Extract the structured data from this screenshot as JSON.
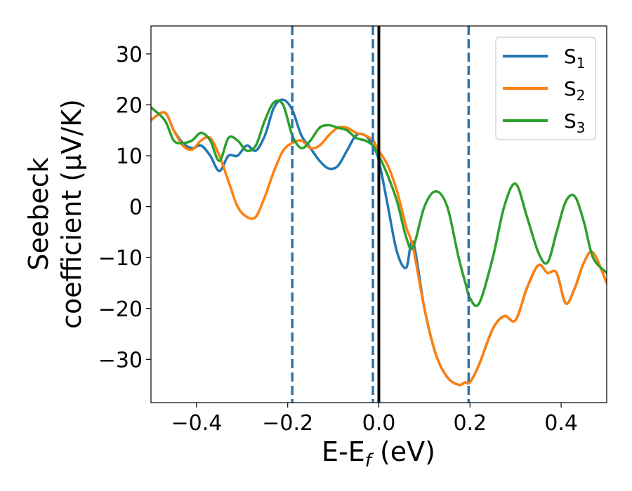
{
  "chart_data": {
    "type": "line",
    "title": "",
    "xlabel": {
      "main": "E-E",
      "sub": "f",
      "unit": " (eV)"
    },
    "ylabel": {
      "line1": "Seebeck",
      "line2": "coefficient  (μV/K)"
    },
    "xlim": [
      -0.5,
      0.5
    ],
    "ylim": [
      -38.5,
      35.5
    ],
    "xticks": [
      -0.4,
      -0.2,
      0.0,
      0.2,
      0.4
    ],
    "xtick_labels": [
      "−0.4",
      "−0.2",
      "0.0",
      "0.2",
      "0.4"
    ],
    "yticks": [
      30,
      20,
      10,
      0,
      -10,
      -20,
      -30
    ],
    "ytick_labels": [
      "30",
      "20",
      "10",
      "0",
      "−10",
      "−20",
      "−30"
    ],
    "grid": false,
    "legend_position": "top-right",
    "vertical_lines": [
      {
        "x": -0.19,
        "style": "dashed",
        "color": "#2f74a8"
      },
      {
        "x": -0.013,
        "style": "dashed",
        "color": "#2f74a8"
      },
      {
        "x": 0.0,
        "style": "solid",
        "color": "#000000"
      },
      {
        "x": 0.197,
        "style": "dashed",
        "color": "#2f74a8"
      }
    ],
    "series": [
      {
        "name": "S",
        "sub": "1",
        "color": "#1f77b4",
        "x": [
          -0.5,
          -0.47,
          -0.45,
          -0.43,
          -0.41,
          -0.39,
          -0.37,
          -0.35,
          -0.33,
          -0.31,
          -0.29,
          -0.27,
          -0.25,
          -0.23,
          -0.21,
          -0.19,
          -0.17,
          -0.15,
          -0.13,
          -0.11,
          -0.09,
          -0.07,
          -0.05,
          -0.03,
          -0.013,
          0.0,
          0.02,
          0.04,
          0.06,
          0.075,
          0.1,
          0.125,
          0.15,
          0.175,
          0.19,
          0.2,
          0.22,
          0.25,
          0.275,
          0.3,
          0.325,
          0.35,
          0.37,
          0.39,
          0.41,
          0.43,
          0.45,
          0.47,
          0.5
        ],
        "values": [
          17,
          18.5,
          15,
          12.5,
          11.5,
          12,
          10,
          7,
          10,
          10,
          12,
          11,
          14,
          19.5,
          21,
          19,
          14,
          11.5,
          9,
          7.5,
          8,
          11,
          14,
          14,
          12,
          9,
          0,
          -9,
          -12,
          -7,
          -20,
          -29,
          -33.5,
          -35,
          -34.5,
          -34.5,
          -31,
          -24,
          -21.5,
          -22.3,
          -16,
          -11.5,
          -13,
          -13,
          -19,
          -16,
          -11,
          -9,
          -15
        ]
      },
      {
        "name": "S",
        "sub": "2",
        "color": "#ff7f0e",
        "x": [
          -0.5,
          -0.47,
          -0.45,
          -0.43,
          -0.41,
          -0.39,
          -0.37,
          -0.35,
          -0.33,
          -0.31,
          -0.29,
          -0.27,
          -0.25,
          -0.23,
          -0.21,
          -0.19,
          -0.17,
          -0.15,
          -0.13,
          -0.11,
          -0.09,
          -0.07,
          -0.05,
          -0.03,
          -0.013,
          0.0,
          0.02,
          0.04,
          0.06,
          0.075,
          0.1,
          0.125,
          0.15,
          0.175,
          0.19,
          0.2,
          0.22,
          0.25,
          0.275,
          0.3,
          0.325,
          0.35,
          0.37,
          0.39,
          0.41,
          0.43,
          0.45,
          0.47,
          0.5
        ],
        "values": [
          17,
          18.5,
          15,
          12,
          11.2,
          13,
          13.5,
          10,
          5,
          0,
          -2,
          -2,
          2,
          7,
          11,
          12.5,
          13,
          11.5,
          12,
          14,
          15.5,
          15.5,
          14.5,
          14,
          13,
          11,
          8,
          3,
          -4,
          -8,
          -20,
          -29,
          -33.5,
          -35,
          -34.5,
          -34.5,
          -31,
          -24,
          -21.5,
          -22.3,
          -16,
          -11.5,
          -13,
          -13,
          -19,
          -16,
          -11,
          -9,
          -15
        ]
      },
      {
        "name": "S",
        "sub": "3",
        "color": "#2ca02c",
        "x": [
          -0.5,
          -0.47,
          -0.45,
          -0.43,
          -0.41,
          -0.39,
          -0.37,
          -0.35,
          -0.33,
          -0.31,
          -0.29,
          -0.27,
          -0.25,
          -0.23,
          -0.21,
          -0.19,
          -0.17,
          -0.15,
          -0.13,
          -0.11,
          -0.09,
          -0.07,
          -0.05,
          -0.03,
          -0.013,
          0.0,
          0.02,
          0.04,
          0.06,
          0.075,
          0.1,
          0.125,
          0.15,
          0.175,
          0.19,
          0.2,
          0.22,
          0.25,
          0.275,
          0.3,
          0.325,
          0.35,
          0.37,
          0.39,
          0.41,
          0.43,
          0.45,
          0.47,
          0.5
        ],
        "values": [
          19.5,
          17,
          13,
          12.5,
          13,
          14.5,
          13,
          9,
          13.5,
          13,
          11,
          12,
          17,
          20.5,
          20,
          14,
          11.5,
          13,
          15.5,
          16,
          15.5,
          15,
          13.5,
          13,
          12,
          10,
          6,
          1,
          -6,
          -8,
          0,
          3,
          0,
          -10,
          -15,
          -18,
          -19,
          -10,
          0,
          4.5,
          -2,
          -9,
          -11,
          -5,
          1,
          2,
          -3,
          -10,
          -13
        ]
      }
    ]
  }
}
